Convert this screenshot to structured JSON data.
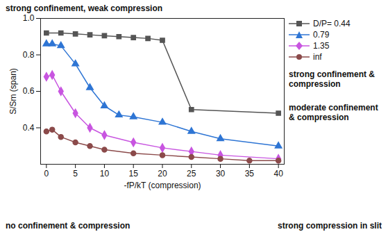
{
  "chart_data": {
    "type": "line",
    "x_label": "-fP/kT (compression)",
    "y_label": "S/Sm (span)",
    "xlim": [
      -1,
      41
    ],
    "xticks": [
      0,
      5,
      10,
      15,
      20,
      25,
      30,
      35,
      40
    ],
    "ylim": [
      0.2,
      1.0
    ],
    "yticks": [
      0.4,
      0.6,
      0.8,
      {
        "value": 1.0,
        "label": "1.0"
      }
    ],
    "legend": "right",
    "grid": false,
    "series": [
      {
        "name": "D/P= 0.44",
        "color": "#555555",
        "marker": "square",
        "x": [
          0,
          2.5,
          5,
          7.5,
          10,
          12.5,
          15,
          17.5,
          20,
          25,
          40
        ],
        "values": [
          0.92,
          0.92,
          0.915,
          0.91,
          0.905,
          0.9,
          0.895,
          0.89,
          0.88,
          0.5,
          0.48
        ]
      },
      {
        "name": "0.79",
        "color": "#2e75d4",
        "marker": "triangle",
        "x": [
          0,
          1,
          2.5,
          5,
          7.5,
          10,
          12.5,
          15,
          20,
          25,
          30,
          40
        ],
        "values": [
          0.86,
          0.86,
          0.85,
          0.75,
          0.62,
          0.52,
          0.47,
          0.46,
          0.43,
          0.38,
          0.34,
          0.3
        ]
      },
      {
        "name": "1.35",
        "color": "#c855e0",
        "marker": "diamond",
        "x": [
          0,
          1,
          2.5,
          5,
          7.5,
          10,
          15,
          20,
          25,
          30,
          40
        ],
        "values": [
          0.68,
          0.69,
          0.6,
          0.48,
          0.4,
          0.36,
          0.32,
          0.29,
          0.27,
          0.25,
          0.23
        ]
      },
      {
        "name": "inf",
        "color": "#8b4a4a",
        "marker": "circle",
        "x": [
          0,
          1,
          2.5,
          5,
          7.5,
          10,
          15,
          20,
          25,
          30,
          35,
          40
        ],
        "values": [
          0.38,
          0.39,
          0.35,
          0.32,
          0.3,
          0.28,
          0.26,
          0.25,
          0.24,
          0.23,
          0.22,
          0.22
        ]
      }
    ],
    "annotations": [
      "strong confinement, weak compression",
      "strong confinement & compression",
      "moderate confinement & compression",
      "no confinement & compression",
      "strong compression in slit"
    ]
  }
}
